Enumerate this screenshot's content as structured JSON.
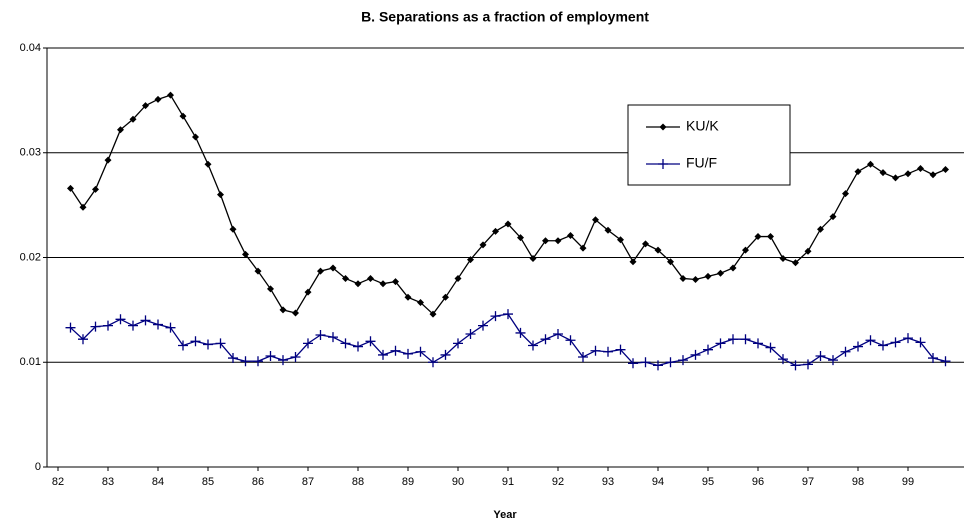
{
  "chart_data": {
    "type": "line",
    "title": "B. Separations as a fraction of employment",
    "x_label": "Year",
    "x": [
      82.25,
      82.5,
      82.75,
      83,
      83.25,
      83.5,
      83.75,
      84,
      84.25,
      84.5,
      84.75,
      85,
      85.25,
      85.5,
      85.75,
      86,
      86.25,
      86.5,
      86.75,
      87,
      87.25,
      87.5,
      87.75,
      88,
      88.25,
      88.5,
      88.75,
      89,
      89.25,
      89.5,
      89.75,
      90,
      90.25,
      90.5,
      90.75,
      91,
      91.25,
      91.5,
      91.75,
      92,
      92.25,
      92.5,
      92.75,
      93,
      93.25,
      93.5,
      93.75,
      94,
      94.25,
      94.5,
      94.75,
      95,
      95.25,
      95.5,
      95.75,
      96,
      96.25,
      96.5,
      96.75,
      97,
      97.25,
      97.5,
      97.75,
      98,
      98.25,
      98.5,
      98.75,
      99,
      99.25,
      99.5,
      99.75
    ],
    "series": [
      {
        "name": "KU/K",
        "color": "#000000",
        "marker": "diamond",
        "values": [
          0.0266,
          0.0248,
          0.0265,
          0.0293,
          0.0322,
          0.0332,
          0.0345,
          0.0351,
          0.0355,
          0.0335,
          0.0315,
          0.0289,
          0.026,
          0.0227,
          0.0203,
          0.0187,
          0.017,
          0.015,
          0.0147,
          0.0167,
          0.0187,
          0.019,
          0.018,
          0.0175,
          0.018,
          0.0175,
          0.0177,
          0.0162,
          0.0157,
          0.0146,
          0.0162,
          0.018,
          0.0198,
          0.0212,
          0.0225,
          0.0232,
          0.0219,
          0.0199,
          0.0216,
          0.0216,
          0.0221,
          0.0209,
          0.0236,
          0.0226,
          0.0217,
          0.0196,
          0.0213,
          0.0207,
          0.0196,
          0.018,
          0.0179,
          0.0182,
          0.0185,
          0.019,
          0.0207,
          0.022,
          0.022,
          0.0199,
          0.0195,
          0.0206,
          0.0227,
          0.0239,
          0.0261,
          0.0282,
          0.0289,
          0.0281,
          0.0276,
          0.028,
          0.0285,
          0.0279,
          0.0284
        ]
      },
      {
        "name": "FU/F",
        "color": "#000080",
        "marker": "plus",
        "values": [
          0.0133,
          0.0122,
          0.0134,
          0.0135,
          0.0141,
          0.0135,
          0.014,
          0.0136,
          0.0133,
          0.0116,
          0.012,
          0.0117,
          0.0118,
          0.0104,
          0.0101,
          0.0101,
          0.0106,
          0.0102,
          0.0105,
          0.0118,
          0.0126,
          0.0124,
          0.0118,
          0.0115,
          0.012,
          0.0107,
          0.0111,
          0.0108,
          0.011,
          0.01,
          0.0107,
          0.0118,
          0.0127,
          0.0135,
          0.0144,
          0.0146,
          0.0128,
          0.0116,
          0.0122,
          0.0127,
          0.0121,
          0.0105,
          0.0111,
          0.011,
          0.0112,
          0.0099,
          0.01,
          0.0097,
          0.01,
          0.0102,
          0.0107,
          0.0112,
          0.0118,
          0.0122,
          0.0122,
          0.0118,
          0.0114,
          0.0103,
          0.0097,
          0.0098,
          0.0106,
          0.0102,
          0.011,
          0.0115,
          0.0121,
          0.0116,
          0.0119,
          0.0123,
          0.0119,
          0.0104,
          0.0101
        ]
      }
    ],
    "xlim": [
      81.78,
      100.12
    ],
    "xticks": [
      82,
      83,
      84,
      85,
      86,
      87,
      88,
      89,
      90,
      91,
      92,
      93,
      94,
      95,
      96,
      97,
      98,
      99
    ],
    "ylim": [
      0,
      0.04
    ],
    "yticks": [
      0,
      0.01,
      0.02,
      0.03,
      0.04
    ],
    "grid": true,
    "legend": "upper right"
  }
}
